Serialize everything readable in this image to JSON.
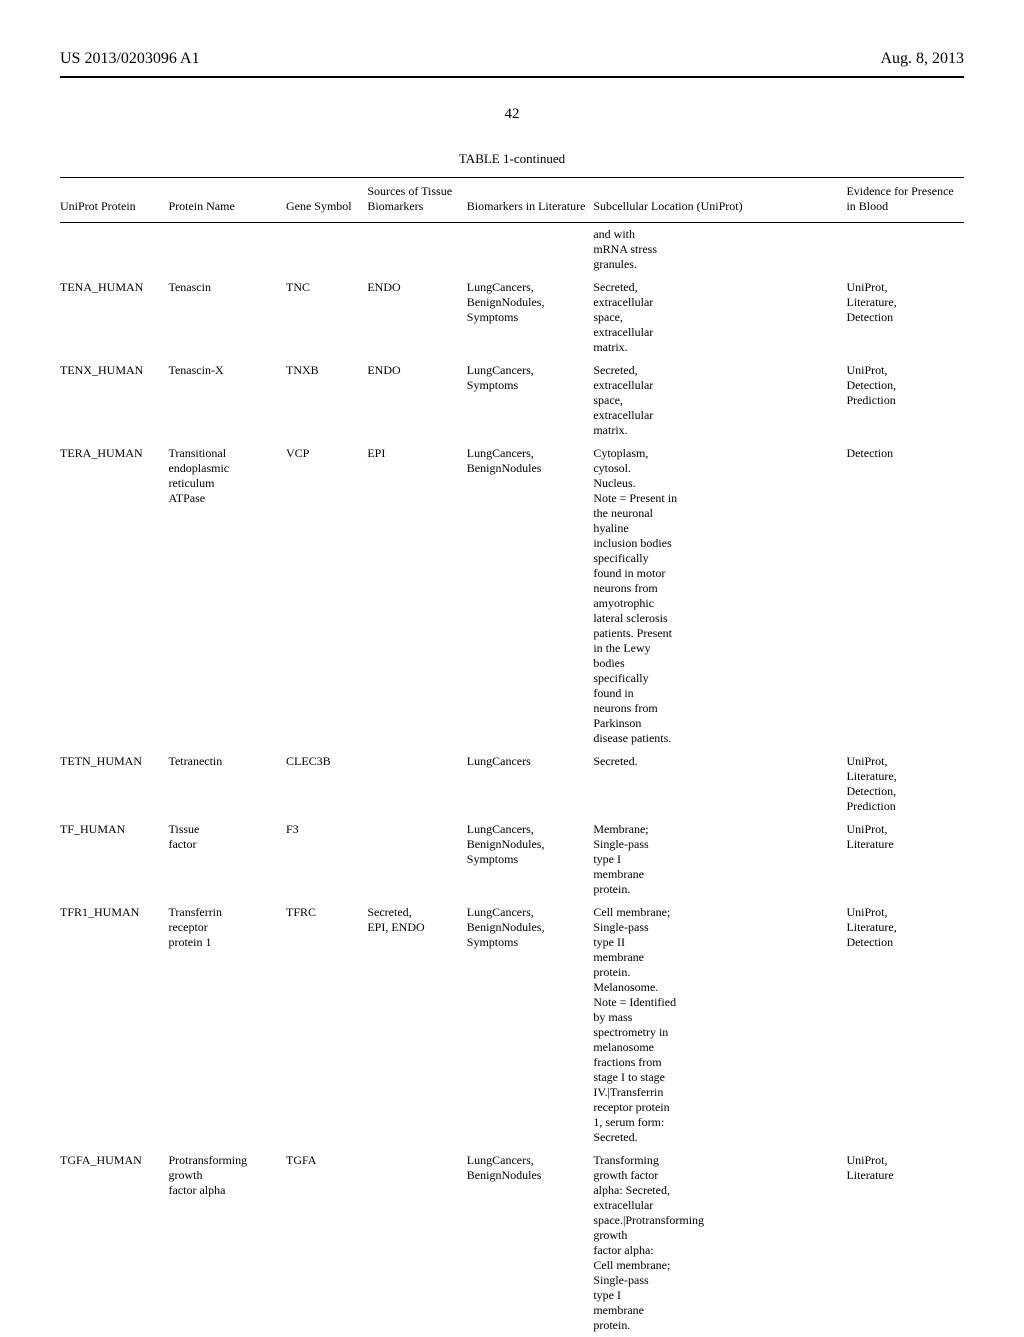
{
  "header": {
    "left": "US 2013/0203096 A1",
    "right": "Aug. 8, 2013"
  },
  "page_number": "42",
  "table": {
    "caption": "TABLE 1-continued",
    "columns": [
      "UniProt\nProtein",
      "Protein\nName",
      "Gene\nSymbol",
      "Sources of\nTissue\nBiomarkers",
      "Biomarkers\nin Literature",
      "Subcellular\nLocation\n(UniProt)",
      "Evidence for\nPresence in\nBlood"
    ],
    "rows": [
      {
        "uniprot": "",
        "protein": "",
        "gene": "",
        "sources": "",
        "biomark": "",
        "subcell": "and with\nmRNA stress\ngranules.",
        "evidence": ""
      },
      {
        "uniprot": "TENA_HUMAN",
        "protein": "Tenascin",
        "gene": "TNC",
        "sources": "ENDO",
        "biomark": "LungCancers,\nBenignNodules,\nSymptoms",
        "subcell": "Secreted,\nextracellular\nspace,\nextracellular\nmatrix.",
        "evidence": "UniProt,\nLiterature,\nDetection"
      },
      {
        "uniprot": "TENX_HUMAN",
        "protein": "Tenascin-X",
        "gene": "TNXB",
        "sources": "ENDO",
        "biomark": "LungCancers,\nSymptoms",
        "subcell": "Secreted,\nextracellular\nspace,\nextracellular\nmatrix.",
        "evidence": "UniProt,\nDetection,\nPrediction"
      },
      {
        "uniprot": "TERA_HUMAN",
        "protein": "Transitional\nendoplasmic\nreticulum\nATPase",
        "gene": "VCP",
        "sources": "EPI",
        "biomark": "LungCancers,\nBenignNodules",
        "subcell": "Cytoplasm,\ncytosol.\nNucleus.\nNote = Present in\nthe neuronal\nhyaline\ninclusion bodies\nspecifically\nfound in motor\nneurons from\namyotrophic\nlateral sclerosis\npatients. Present\nin the Lewy\nbodies\nspecifically\nfound in\nneurons from\nParkinson\ndisease patients.",
        "evidence": "Detection"
      },
      {
        "uniprot": "TETN_HUMAN",
        "protein": "Tetranectin",
        "gene": "CLEC3B",
        "sources": "",
        "biomark": "LungCancers",
        "subcell": "Secreted.",
        "evidence": "UniProt,\nLiterature,\nDetection,\nPrediction"
      },
      {
        "uniprot": "TF_HUMAN",
        "protein": "Tissue\nfactor",
        "gene": "F3",
        "sources": "",
        "biomark": "LungCancers,\nBenignNodules,\nSymptoms",
        "subcell": "Membrane;\nSingle-pass\ntype I\nmembrane\nprotein.",
        "evidence": "UniProt,\nLiterature"
      },
      {
        "uniprot": "TFR1_HUMAN",
        "protein": "Transferrin\nreceptor\nprotein 1",
        "gene": "TFRC",
        "sources": "Secreted,\nEPI, ENDO",
        "biomark": "LungCancers,\nBenignNodules,\nSymptoms",
        "subcell": "Cell membrane;\nSingle-pass\ntype II\nmembrane\nprotein.\nMelanosome.\nNote = Identified\nby mass\nspectrometry in\nmelanosome\nfractions from\nstage I to stage\nIV.|Transferrin\nreceptor protein\n1, serum form:\nSecreted.",
        "evidence": "UniProt,\nLiterature,\nDetection"
      },
      {
        "uniprot": "TGFA_HUMAN",
        "protein": "Protransforming\ngrowth\nfactor alpha",
        "gene": "TGFA",
        "sources": "",
        "biomark": "LungCancers,\nBenignNodules",
        "subcell": "Transforming\ngrowth factor\nalpha: Secreted,\nextracellular\nspace.|Protransforming\ngrowth\nfactor alpha:\nCell membrane;\nSingle-pass\ntype I\nmembrane\nprotein.",
        "evidence": "UniProt,\nLiterature"
      }
    ]
  }
}
